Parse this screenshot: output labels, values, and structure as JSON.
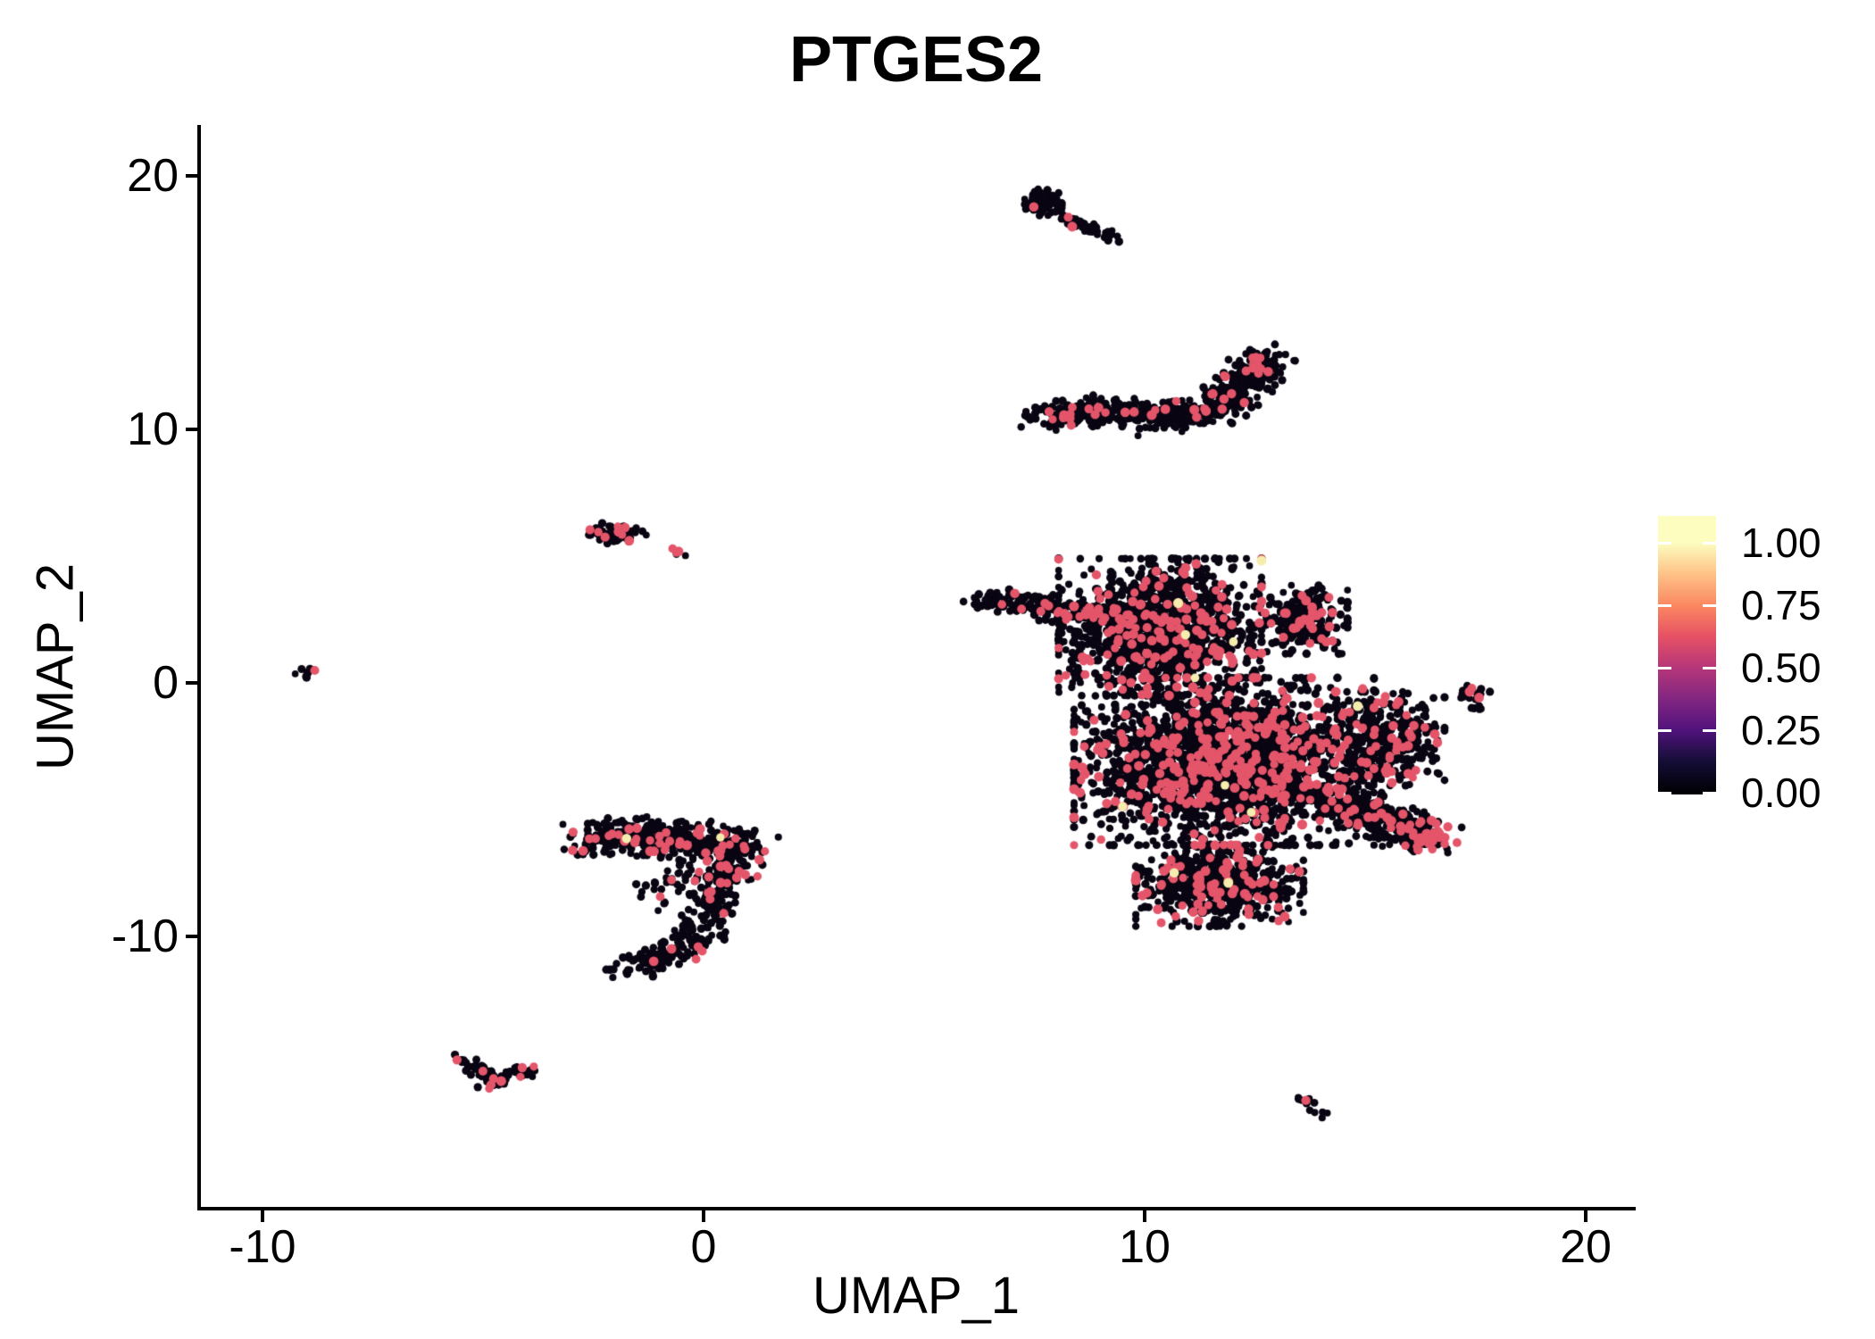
{
  "title": "PTGES2",
  "axes": {
    "x": {
      "label": "UMAP_1",
      "ticks": [
        {
          "value": -10,
          "label": "-10"
        },
        {
          "value": 0,
          "label": "0"
        },
        {
          "value": 10,
          "label": "10"
        },
        {
          "value": 20,
          "label": "20"
        }
      ]
    },
    "y": {
      "label": "UMAP_2",
      "ticks": [
        {
          "value": 20,
          "label": "20"
        },
        {
          "value": 10,
          "label": "10"
        },
        {
          "value": 0,
          "label": "0"
        },
        {
          "value": -10,
          "label": "-10"
        }
      ]
    }
  },
  "legend": {
    "ticks": [
      {
        "value": 1.0,
        "label": "1.00"
      },
      {
        "value": 0.75,
        "label": "0.75"
      },
      {
        "value": 0.5,
        "label": "0.50"
      },
      {
        "value": 0.25,
        "label": "0.25"
      },
      {
        "value": 0.0,
        "label": "0.00"
      }
    ],
    "gradient_stops": [
      {
        "value": 0.0,
        "color": "#000004"
      },
      {
        "value": 0.125,
        "color": "#140E36"
      },
      {
        "value": 0.25,
        "color": "#51127C"
      },
      {
        "value": 0.375,
        "color": "#822681"
      },
      {
        "value": 0.5,
        "color": "#B63679"
      },
      {
        "value": 0.625,
        "color": "#E65164"
      },
      {
        "value": 0.75,
        "color": "#FB8861"
      },
      {
        "value": 0.875,
        "color": "#FEC287"
      },
      {
        "value": 1.0,
        "color": "#FCFDBF"
      }
    ]
  },
  "colors": {
    "background": "#ffffff",
    "axis": "#000000",
    "text": "#000000"
  },
  "chart_data": {
    "type": "scatter",
    "title": "PTGES2",
    "xlabel": "UMAP_1",
    "ylabel": "UMAP_2",
    "xlim": [
      -11.4,
      21.1
    ],
    "ylim": [
      -20.7,
      21.8
    ],
    "grid": false,
    "legend_position": "right",
    "color_scale": {
      "name": "magma",
      "domain": [
        0.0,
        1.0
      ]
    },
    "point_values": {
      "zero": 0.0,
      "mid": 0.6,
      "high": 0.95
    },
    "point_colors": {
      "zero": "#0A0512",
      "mid": "#E4556A",
      "high": "#F5EDAE"
    },
    "seed": 42,
    "clusters": [
      {
        "name": "top-islet-head",
        "shape": "blob",
        "center": [
          7.7,
          18.95
        ],
        "rx": 0.42,
        "ry": 0.52,
        "n": 90,
        "frac_mid": 0.03,
        "frac_high": 0
      },
      {
        "name": "top-islet-tail",
        "shape": "band",
        "path": [
          [
            8.1,
            18.45
          ],
          [
            9.3,
            17.55
          ]
        ],
        "width": 0.2,
        "n": 55,
        "frac_mid": 0.02,
        "frac_high": 0
      },
      {
        "name": "crescent",
        "shape": "band",
        "path": [
          [
            7.75,
            10.55
          ],
          [
            9.3,
            10.75
          ],
          [
            10.8,
            10.5
          ],
          [
            11.8,
            11.0
          ],
          [
            12.35,
            11.9
          ],
          [
            12.75,
            12.85
          ]
        ],
        "width": 0.55,
        "n": 620,
        "frac_mid": 0.05,
        "frac_high": 0
      },
      {
        "name": "crescent-tip",
        "shape": "blob",
        "center": [
          12.6,
          12.65
        ],
        "rx": 0.3,
        "ry": 0.35,
        "n": 25,
        "frac_mid": 0.3,
        "frac_high": 0
      },
      {
        "name": "main-nw-tail",
        "shape": "band",
        "path": [
          [
            6.45,
            3.3
          ],
          [
            7.6,
            3.05
          ],
          [
            8.6,
            2.6
          ]
        ],
        "width": 0.45,
        "n": 130,
        "frac_mid": 0.1,
        "frac_high": 0
      },
      {
        "name": "main-upper-lobe",
        "shape": "blob",
        "center": [
          10.35,
          2.2
        ],
        "rx": 2.3,
        "ry": 2.7,
        "n": 1350,
        "frac_mid": 0.13,
        "frac_high": 0.002
      },
      {
        "name": "main-ne-bump",
        "shape": "blob",
        "center": [
          13.6,
          2.5
        ],
        "rx": 1.0,
        "ry": 1.35,
        "n": 240,
        "frac_mid": 0.12,
        "frac_high": 0
      },
      {
        "name": "main-central",
        "shape": "blob",
        "center": [
          11.8,
          -3.1
        ],
        "rx": 3.4,
        "ry": 3.3,
        "n": 2500,
        "frac_mid": 0.14,
        "frac_high": 0.002
      },
      {
        "name": "main-lower",
        "shape": "blob",
        "center": [
          11.7,
          -8.0
        ],
        "rx": 1.9,
        "ry": 1.6,
        "n": 650,
        "frac_mid": 0.13,
        "frac_high": 0.002
      },
      {
        "name": "main-right-lobe",
        "shape": "blob",
        "center": [
          15.5,
          -2.2
        ],
        "rx": 1.3,
        "ry": 1.85,
        "n": 330,
        "frac_mid": 0.12,
        "frac_high": 0
      },
      {
        "name": "main-right-arm",
        "shape": "band",
        "path": [
          [
            13.9,
            -4.4
          ],
          [
            15.3,
            -5.2
          ],
          [
            16.4,
            -6.1
          ]
        ],
        "width": 0.65,
        "n": 380,
        "frac_mid": 0.12,
        "frac_high": 0
      },
      {
        "name": "arm-tip",
        "shape": "blob",
        "center": [
          16.4,
          -6.15
        ],
        "rx": 0.5,
        "ry": 0.55,
        "n": 70,
        "frac_mid": 0.3,
        "frac_high": 0
      },
      {
        "name": "right-islet",
        "shape": "blob",
        "center": [
          17.45,
          -0.35
        ],
        "rx": 0.42,
        "ry": 0.3,
        "n": 16,
        "frac_mid": 0.22,
        "frac_high": 0
      },
      {
        "name": "right-islet-tail",
        "shape": "band",
        "path": [
          [
            17.5,
            -0.6
          ],
          [
            17.6,
            -1.2
          ]
        ],
        "width": 0.12,
        "n": 6,
        "frac_mid": 0.15,
        "frac_high": 0
      },
      {
        "name": "far-left-dot",
        "shape": "blob",
        "center": [
          -9.0,
          0.45
        ],
        "rx": 0.32,
        "ry": 0.24,
        "n": 11,
        "frac_mid": 0.27,
        "frac_high": 0
      },
      {
        "name": "upper-left-islet",
        "shape": "blob",
        "center": [
          -1.95,
          5.9
        ],
        "rx": 0.65,
        "ry": 0.4,
        "n": 70,
        "frac_mid": 0.07,
        "frac_high": 0
      },
      {
        "name": "upper-left-satellites",
        "shape": "band",
        "path": [
          [
            -0.75,
            5.2
          ],
          [
            -0.35,
            5.0
          ]
        ],
        "width": 0.1,
        "n": 5,
        "frac_mid": 0.3,
        "frac_high": 0
      },
      {
        "name": "mid-left-band",
        "shape": "band",
        "path": [
          [
            -2.55,
            -6.2
          ],
          [
            -1.2,
            -5.95
          ],
          [
            0.2,
            -6.3
          ],
          [
            1.0,
            -6.55
          ]
        ],
        "width": 0.68,
        "n": 430,
        "frac_mid": 0.1,
        "frac_high": 0.004
      },
      {
        "name": "mid-left-hook",
        "shape": "band",
        "path": [
          [
            0.75,
            -7.0
          ],
          [
            0.3,
            -8.2
          ],
          [
            0.1,
            -9.3
          ],
          [
            -0.5,
            -10.6
          ],
          [
            -1.85,
            -11.35
          ]
        ],
        "width": 0.5,
        "n": 260,
        "frac_mid": 0.09,
        "frac_high": 0.004
      },
      {
        "name": "mid-left-sparse",
        "shape": "blob",
        "center": [
          -0.6,
          -8.0
        ],
        "rx": 1.0,
        "ry": 1.0,
        "n": 40,
        "frac_mid": 0.1,
        "frac_high": 0
      },
      {
        "name": "v-islet-left-wing",
        "shape": "band",
        "path": [
          [
            -5.35,
            -14.95
          ],
          [
            -4.7,
            -15.8
          ]
        ],
        "width": 0.26,
        "n": 40,
        "frac_mid": 0.1,
        "frac_high": 0
      },
      {
        "name": "v-islet-right-wing",
        "shape": "band",
        "path": [
          [
            -4.7,
            -15.8
          ],
          [
            -3.95,
            -15.1
          ]
        ],
        "width": 0.26,
        "n": 35,
        "frac_mid": 0.12,
        "frac_high": 0
      },
      {
        "name": "bottom-right-islet",
        "shape": "band",
        "path": [
          [
            13.55,
            -16.35
          ],
          [
            14.0,
            -17.05
          ]
        ],
        "width": 0.18,
        "n": 12,
        "frac_mid": 0.25,
        "frac_high": 0
      },
      {
        "name": "outlier-singles",
        "shape": "points",
        "path": [
          [
            7.2,
            10.1
          ],
          [
            9.85,
            9.75
          ],
          [
            6.5,
            3.55
          ],
          [
            13.05,
            12.95
          ]
        ],
        "n": 4,
        "frac_mid": 0,
        "frac_high": 0
      }
    ]
  }
}
